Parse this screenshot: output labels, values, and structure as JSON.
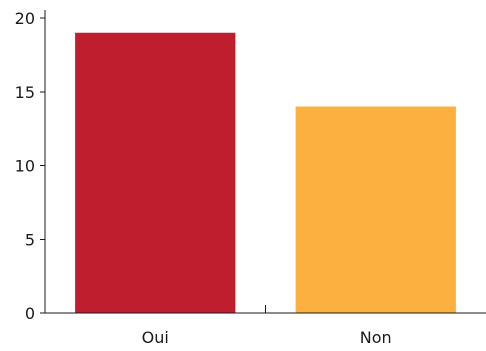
{
  "chart_data": {
    "type": "bar",
    "categories": [
      "Oui",
      "Non"
    ],
    "values": [
      19,
      14
    ],
    "colors": [
      "#be1e2d",
      "#fbb040"
    ],
    "ylim": [
      0,
      20
    ],
    "yticks": [
      0,
      5,
      10,
      15,
      20
    ],
    "title": "",
    "xlabel": "",
    "ylabel": "",
    "grid": false,
    "legend": false
  }
}
